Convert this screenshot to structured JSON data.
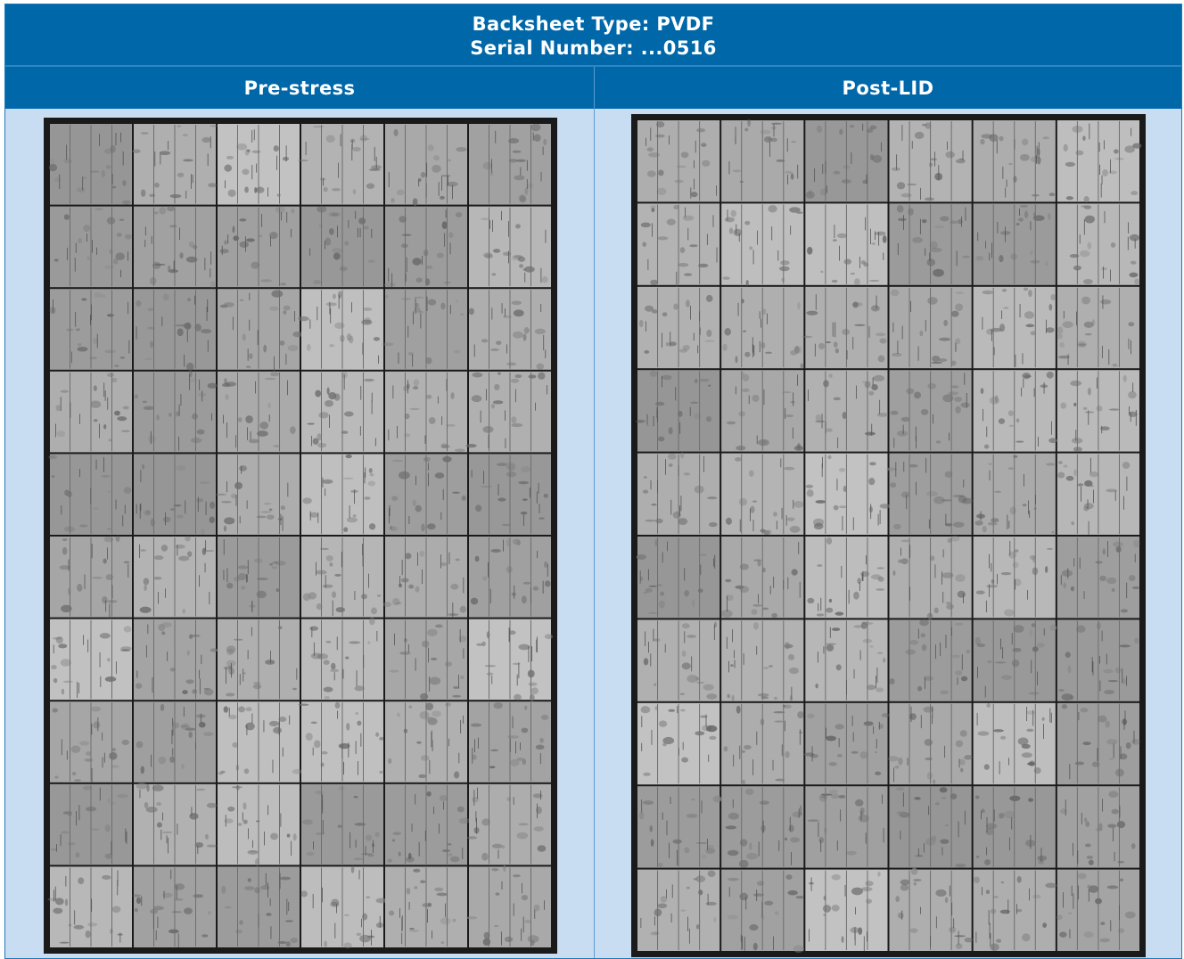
{
  "header": {
    "backsheet_line": "Backsheet Type: PVDF",
    "serial_line": "Serial Number: ...0516"
  },
  "columns": [
    {
      "label": "Pre-stress"
    },
    {
      "label": "Post-LID"
    }
  ],
  "images": [
    {
      "name": "pre-stress-el-image",
      "cell_grid": {
        "columns": 6,
        "rows": 10
      },
      "busbars_per_cell": 3
    },
    {
      "name": "post-lid-el-image",
      "cell_grid": {
        "columns": 6,
        "rows": 10
      },
      "busbars_per_cell": 3
    }
  ],
  "colors": {
    "header_bg": "#0067a8",
    "body_bg": "#c9ddf2",
    "header_text": "#ffffff"
  }
}
